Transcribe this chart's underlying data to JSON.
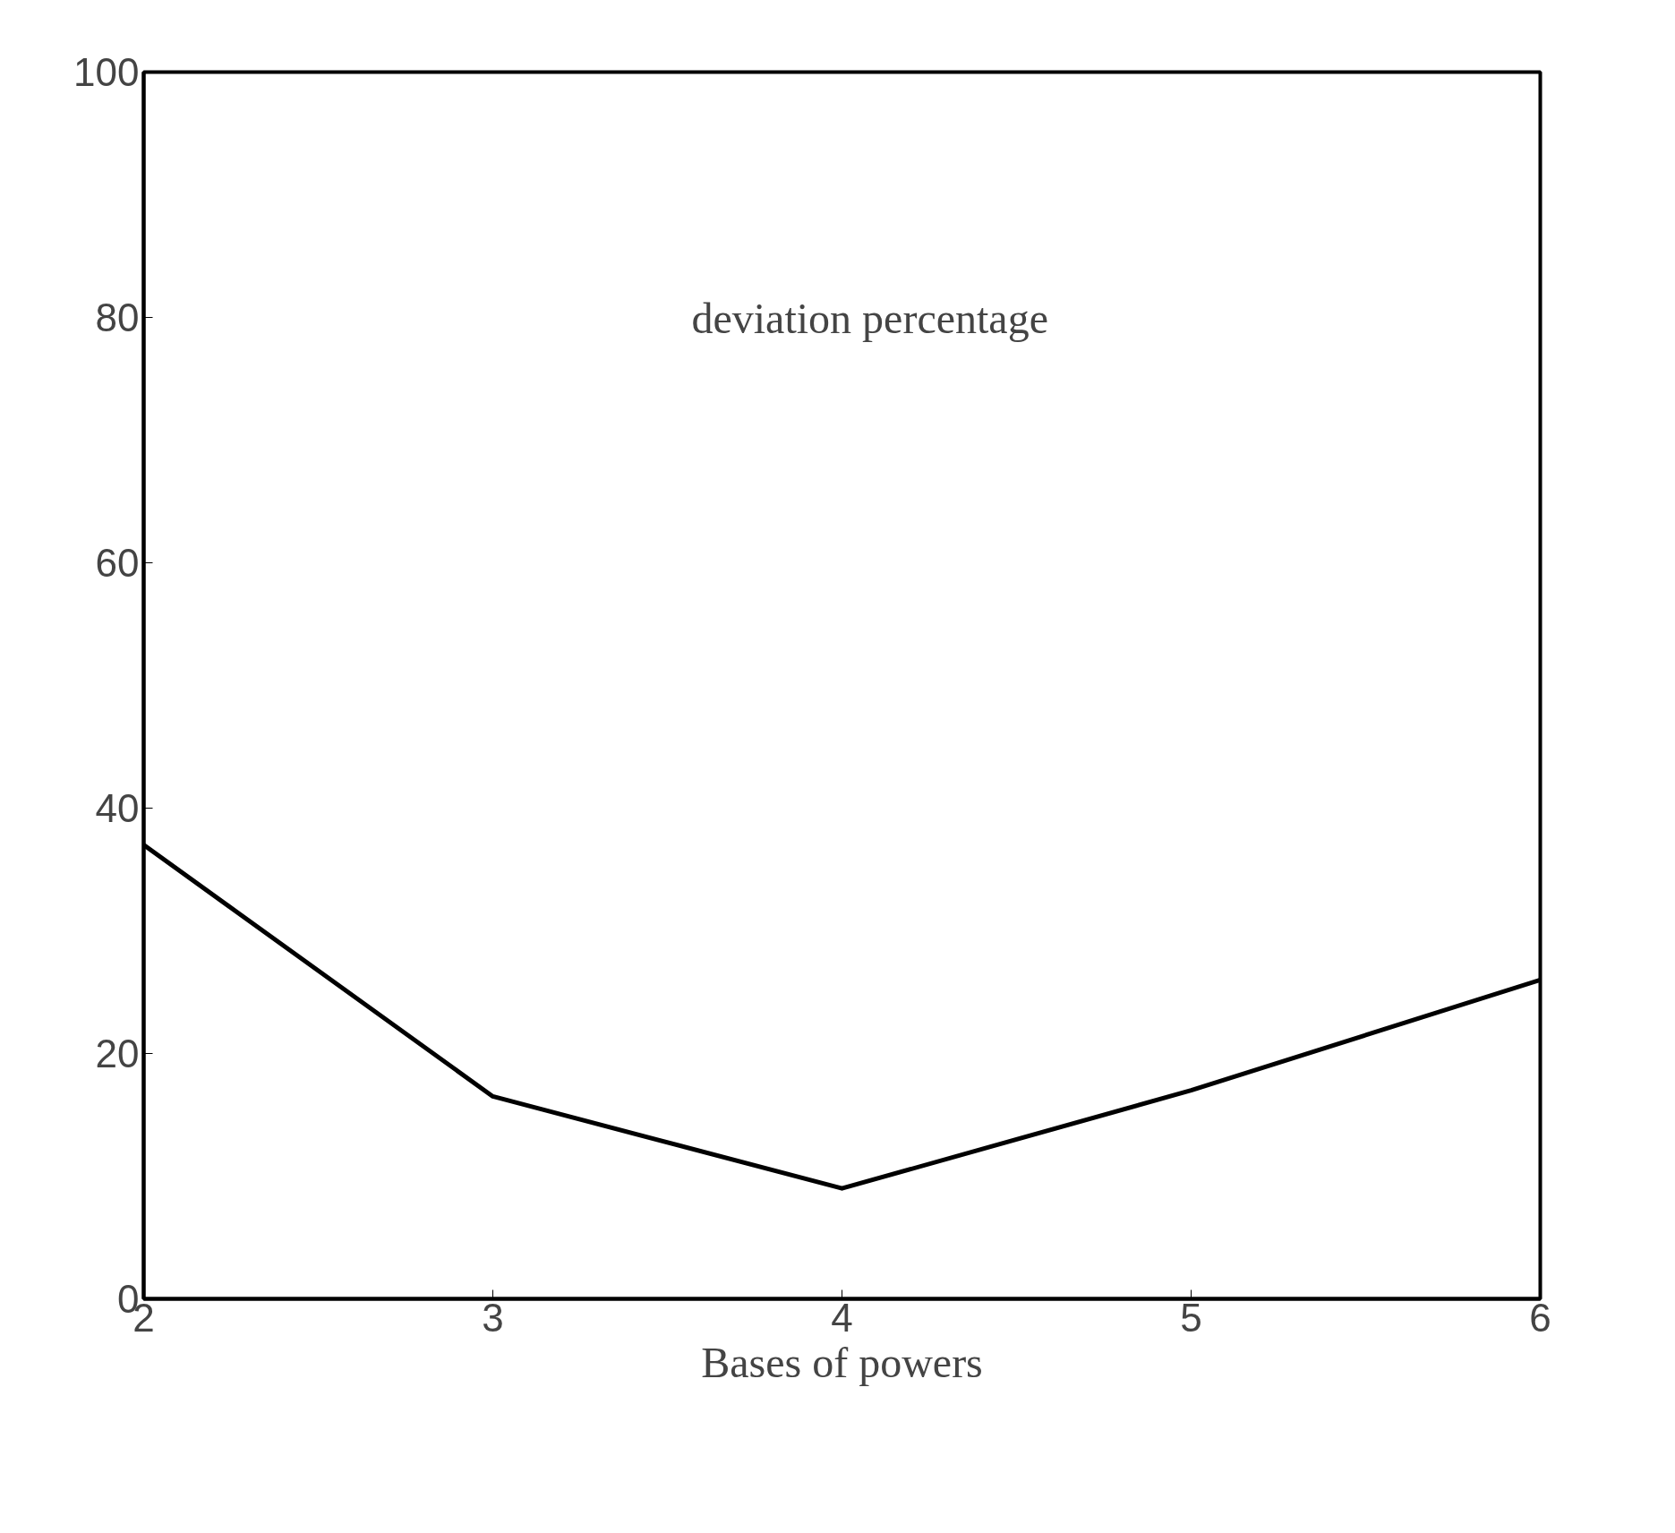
{
  "chart_data": {
    "type": "line",
    "xlabel": "Bases of powers",
    "annotations": [
      "deviation percentage"
    ],
    "x": [
      2,
      3,
      4,
      5,
      6
    ],
    "series": [
      {
        "color": "#000000",
        "values": [
          37,
          16.5,
          9,
          17,
          26
        ]
      }
    ],
    "xlim": [
      2,
      6
    ],
    "ylim": [
      0,
      100
    ],
    "xticks": [
      2,
      3,
      4,
      5,
      6
    ],
    "yticks": [
      0,
      20,
      40,
      60,
      80,
      100
    ],
    "grid": false,
    "marker": "none",
    "line_style": "solid"
  }
}
